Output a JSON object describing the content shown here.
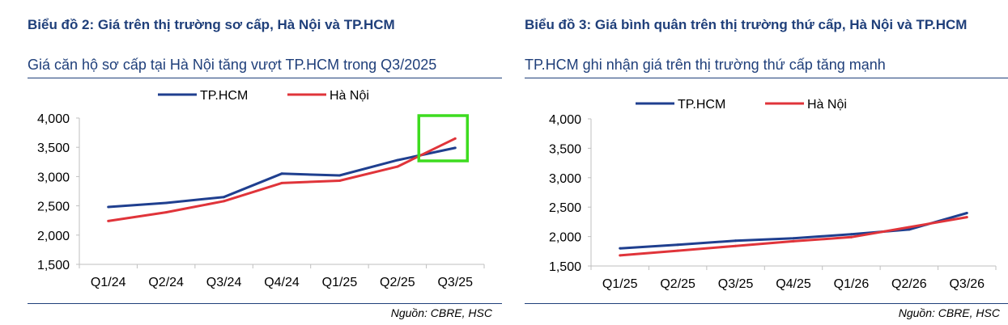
{
  "colors": {
    "title": "#1f3f7a",
    "rule": "#1f3f7a",
    "hcm": "#1f3f8f",
    "hn": "#e0343a",
    "highlight": "#3ddc1f",
    "axis": "#bfbfbf"
  },
  "left": {
    "title": "Biểu đồ 2: Giá trên thị trường sơ cấp, Hà Nội và TP.HCM",
    "subtitle": "Giá căn hộ sơ cấp tại Hà Nội tăng vượt TP.HCM trong Q3/2025",
    "source": "Nguồn: CBRE, HSC"
  },
  "right": {
    "title": "Biểu đồ 3: Giá bình quân trên thị trường thứ cấp, Hà Nội và TP.HCM",
    "subtitle": "TP.HCM ghi nhận giá trên thị trường thứ cấp tăng mạnh",
    "source": "Nguồn: CBRE, HSC"
  },
  "chart_data": [
    {
      "type": "line",
      "categories": [
        "Q1/24",
        "Q2/24",
        "Q3/24",
        "Q4/24",
        "Q1/25",
        "Q2/25",
        "Q3/25"
      ],
      "series": [
        {
          "name": "TP.HCM",
          "values": [
            2480,
            2550,
            2650,
            3050,
            3020,
            3280,
            3490
          ]
        },
        {
          "name": "Hà Nội",
          "values": [
            2240,
            2390,
            2580,
            2890,
            2930,
            3170,
            3650
          ]
        }
      ],
      "yticks": [
        "1,500",
        "2,000",
        "2,500",
        "3,000",
        "3,500",
        "4,000"
      ],
      "ylim": [
        1500,
        4000
      ],
      "legend": "top-center",
      "grid": false,
      "highlight_box_category": "Q3/25"
    },
    {
      "type": "line",
      "categories": [
        "Q1/25",
        "Q2/25",
        "Q3/25",
        "Q4/25",
        "Q1/26",
        "Q2/26",
        "Q3/26"
      ],
      "series": [
        {
          "name": "TP.HCM",
          "values": [
            1800,
            1860,
            1930,
            1970,
            2040,
            2120,
            2400
          ]
        },
        {
          "name": "Hà Nội",
          "values": [
            1680,
            1760,
            1840,
            1920,
            1990,
            2160,
            2330
          ]
        }
      ],
      "yticks": [
        "1,500",
        "2,000",
        "2,500",
        "3,000",
        "3,500",
        "4,000"
      ],
      "ylim": [
        1500,
        4000
      ],
      "legend": "top-center",
      "grid": false
    }
  ]
}
